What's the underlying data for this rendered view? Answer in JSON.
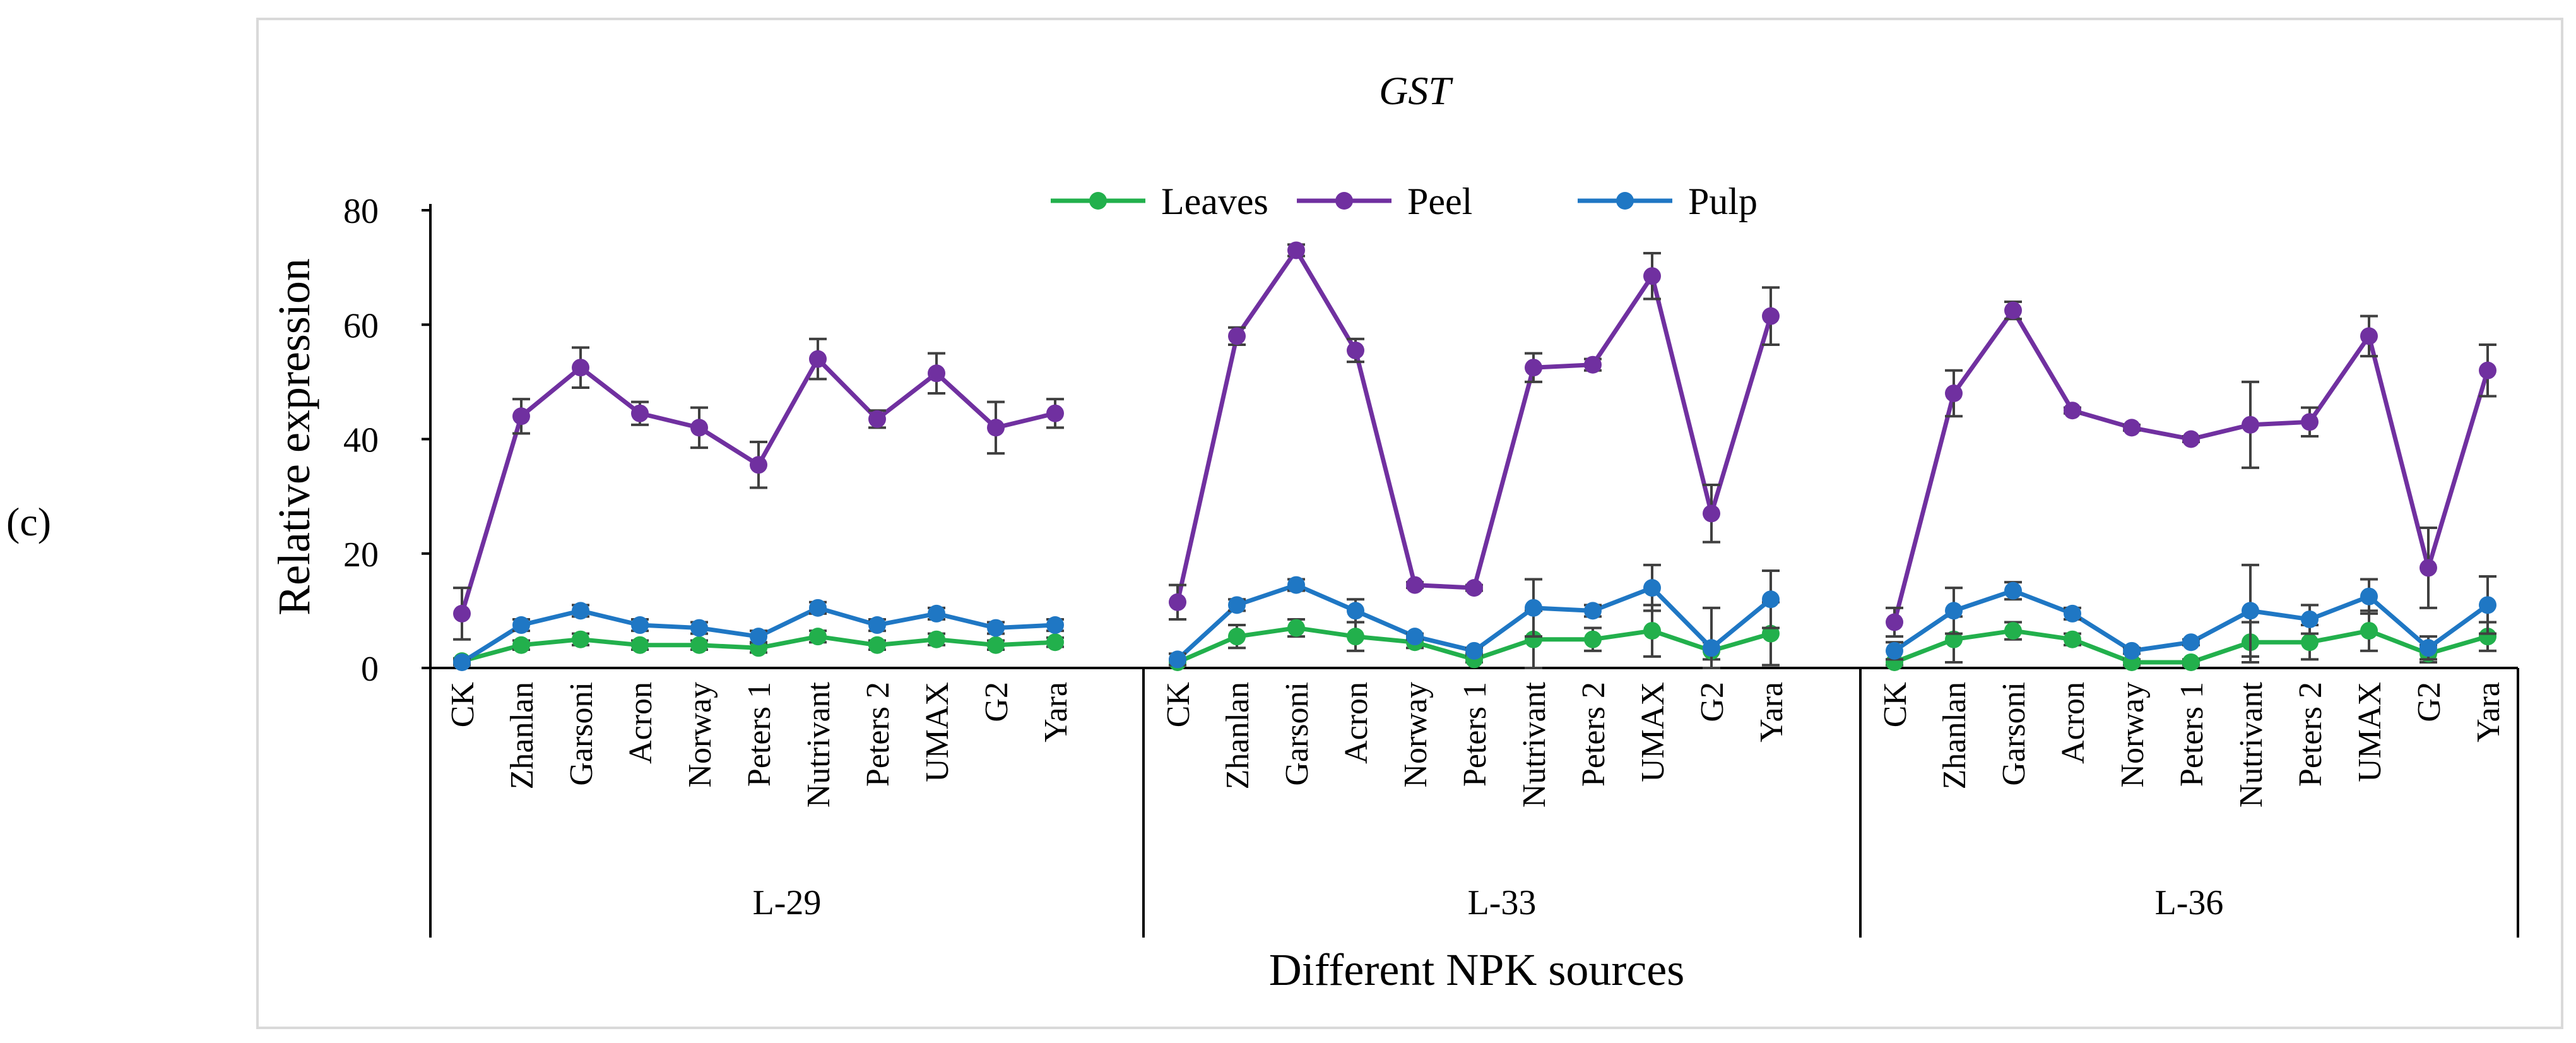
{
  "panel_label": "(c)",
  "colors": {
    "leaves": "#22b04c",
    "peel": "#7030a0",
    "pulp": "#1f77c4",
    "axis": "#000000",
    "errorbar": "#404040",
    "frame": "#d9d9d9"
  },
  "chart_data": {
    "type": "line",
    "title": "GST",
    "xlabel": "Different NPK sources",
    "ylabel": "Relative expression",
    "ylim": [
      0,
      80
    ],
    "yticks": [
      0,
      20,
      40,
      60,
      80
    ],
    "legend_position": "top-center",
    "groups": [
      "L-29",
      "L-33",
      "L-36"
    ],
    "categories": [
      "CK",
      "Zhanlan",
      "Garsoni",
      "Acron",
      "Norway",
      "Peters 1",
      "Nutrivant",
      "Peters 2",
      "UMAX",
      "G2",
      "Yara"
    ],
    "series": [
      {
        "name": "Leaves",
        "values": [
          [
            1.2,
            4.0,
            5.0,
            4.0,
            4.0,
            3.5,
            5.5,
            4.0,
            5.0,
            4.0,
            4.5
          ],
          [
            1.0,
            5.5,
            7.0,
            5.5,
            4.5,
            1.5,
            5.0,
            5.0,
            6.5,
            3.0,
            6.0
          ],
          [
            1.0,
            5.0,
            6.5,
            5.0,
            1.0,
            1.0,
            4.5,
            4.5,
            6.5,
            2.5,
            5.5
          ]
        ],
        "errors": [
          [
            0.5,
            0.8,
            1.0,
            0.8,
            0.8,
            0.8,
            1.0,
            0.8,
            1.0,
            0.8,
            0.8
          ],
          [
            0.5,
            2.0,
            1.5,
            2.5,
            1.0,
            0.5,
            5.0,
            2.0,
            4.5,
            1.5,
            5.5
          ],
          [
            0.5,
            4.0,
            1.5,
            1.0,
            0.5,
            0.5,
            3.5,
            3.0,
            3.5,
            1.5,
            2.5
          ]
        ]
      },
      {
        "name": "Peel",
        "values": [
          [
            9.5,
            44.0,
            52.5,
            44.5,
            42.0,
            35.5,
            54.0,
            43.5,
            51.5,
            42.0,
            44.5
          ],
          [
            11.5,
            58.0,
            73.0,
            55.5,
            14.5,
            14.0,
            52.5,
            53.0,
            68.5,
            27.0,
            61.5
          ],
          [
            8.0,
            48.0,
            62.5,
            45.0,
            42.0,
            40.0,
            42.5,
            43.0,
            58.0,
            17.5,
            52.0
          ]
        ],
        "errors": [
          [
            4.5,
            3.0,
            3.5,
            2.0,
            3.5,
            4.0,
            3.5,
            1.5,
            3.5,
            4.5,
            2.5
          ],
          [
            3.0,
            1.5,
            1.0,
            2.0,
            0.5,
            0.5,
            2.5,
            1.0,
            4.0,
            5.0,
            5.0
          ],
          [
            2.5,
            4.0,
            1.5,
            0.5,
            0.5,
            0.5,
            7.5,
            2.5,
            3.5,
            7.0,
            4.5
          ]
        ]
      },
      {
        "name": "Pulp",
        "values": [
          [
            1.0,
            7.5,
            10.0,
            7.5,
            7.0,
            5.5,
            10.5,
            7.5,
            9.5,
            7.0,
            7.5
          ],
          [
            1.5,
            11.0,
            14.5,
            10.0,
            5.5,
            3.0,
            10.5,
            10.0,
            14.0,
            3.5,
            12.0
          ],
          [
            3.0,
            10.0,
            13.5,
            9.5,
            3.0,
            4.5,
            10.0,
            8.5,
            12.5,
            3.5,
            11.0
          ]
        ],
        "errors": [
          [
            0.5,
            1.0,
            1.0,
            1.0,
            1.0,
            1.0,
            1.0,
            1.0,
            1.0,
            1.0,
            1.0
          ],
          [
            1.0,
            1.0,
            1.0,
            2.0,
            0.5,
            0.5,
            5.0,
            1.0,
            4.0,
            7.0,
            5.0
          ],
          [
            1.5,
            4.0,
            1.5,
            1.0,
            0.5,
            0.5,
            8.0,
            2.5,
            3.0,
            2.0,
            5.0
          ]
        ]
      }
    ]
  }
}
